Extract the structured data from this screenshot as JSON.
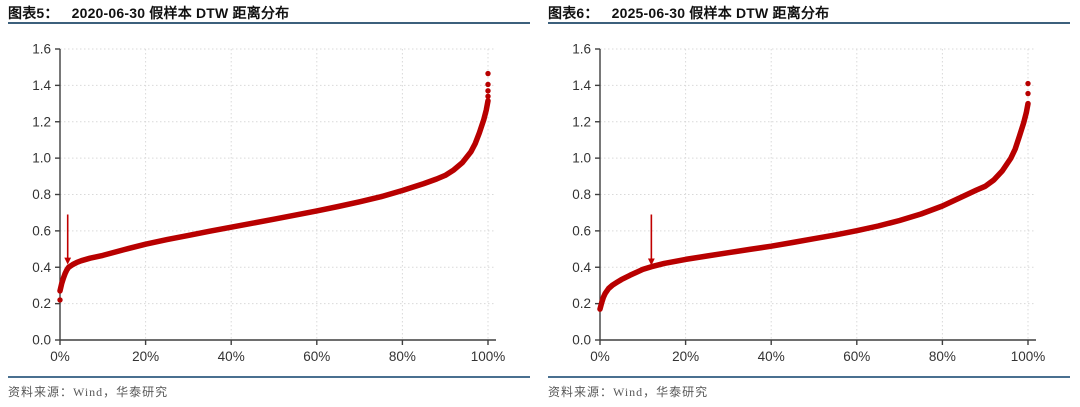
{
  "style": {
    "series_red": "#b80000",
    "arrow_red": "#c00000",
    "axis_color": "#3f3f3f",
    "tick_label_color": "#333333",
    "grid_color": "#d9d9d9",
    "title_color": "#111111",
    "rule_color": "#3c607c",
    "source_color": "#595959"
  },
  "chart_data": [
    {
      "type": "scatter",
      "figure_label": "图表5：",
      "title": "2020-06-30 假样本 DTW 距离分布",
      "source": "资料来源：Wind，华泰研究",
      "xlim": [
        0,
        100
      ],
      "ylim": [
        0,
        1.6
      ],
      "x_ticks": [
        0,
        20,
        40,
        60,
        80,
        100
      ],
      "x_tick_labels": [
        "0%",
        "20%",
        "40%",
        "60%",
        "80%",
        "100%"
      ],
      "y_ticks": [
        0.0,
        0.2,
        0.4,
        0.6,
        0.8,
        1.0,
        1.2,
        1.4,
        1.6
      ],
      "y_tick_labels": [
        "0.0",
        "0.2",
        "0.4",
        "0.6",
        "0.8",
        "1.0",
        "1.2",
        "1.4",
        "1.6"
      ],
      "grid": true,
      "points": [
        [
          0,
          0.27
        ],
        [
          0.4,
          0.31
        ],
        [
          0.8,
          0.34
        ],
        [
          1.2,
          0.365
        ],
        [
          1.6,
          0.385
        ],
        [
          2,
          0.4
        ],
        [
          3,
          0.415
        ],
        [
          4,
          0.427
        ],
        [
          5,
          0.436
        ],
        [
          7,
          0.45
        ],
        [
          10,
          0.465
        ],
        [
          15,
          0.497
        ],
        [
          20,
          0.527
        ],
        [
          25,
          0.552
        ],
        [
          30,
          0.575
        ],
        [
          35,
          0.598
        ],
        [
          40,
          0.62
        ],
        [
          45,
          0.642
        ],
        [
          50,
          0.664
        ],
        [
          55,
          0.687
        ],
        [
          60,
          0.71
        ],
        [
          65,
          0.734
        ],
        [
          70,
          0.76
        ],
        [
          75,
          0.788
        ],
        [
          80,
          0.822
        ],
        [
          85,
          0.86
        ],
        [
          88,
          0.885
        ],
        [
          90,
          0.905
        ],
        [
          92,
          0.935
        ],
        [
          94,
          0.975
        ],
        [
          96,
          1.035
        ],
        [
          97,
          1.08
        ],
        [
          98,
          1.14
        ],
        [
          99,
          1.21
        ],
        [
          99.6,
          1.265
        ],
        [
          100,
          1.315
        ]
      ],
      "isolated_points": [
        [
          0,
          0.22
        ],
        [
          100,
          1.34
        ],
        [
          100,
          1.37
        ],
        [
          100,
          1.405
        ],
        [
          100,
          1.465
        ]
      ],
      "arrow": {
        "x": 1.8,
        "y_from": 0.69,
        "y_to": 0.445
      }
    },
    {
      "type": "scatter",
      "figure_label": "图表6：",
      "title": "2025-06-30 假样本 DTW 距离分布",
      "source": "资料来源：Wind，华泰研究",
      "xlim": [
        0,
        100
      ],
      "ylim": [
        0,
        1.6
      ],
      "x_ticks": [
        0,
        20,
        40,
        60,
        80,
        100
      ],
      "x_tick_labels": [
        "0%",
        "20%",
        "40%",
        "60%",
        "80%",
        "100%"
      ],
      "y_ticks": [
        0.0,
        0.2,
        0.4,
        0.6,
        0.8,
        1.0,
        1.2,
        1.4,
        1.6
      ],
      "y_tick_labels": [
        "0.0",
        "0.2",
        "0.4",
        "0.6",
        "0.8",
        "1.0",
        "1.2",
        "1.4",
        "1.6"
      ],
      "grid": true,
      "points": [
        [
          0,
          0.17
        ],
        [
          0.4,
          0.205
        ],
        [
          0.8,
          0.235
        ],
        [
          1.2,
          0.255
        ],
        [
          2,
          0.283
        ],
        [
          3,
          0.303
        ],
        [
          4,
          0.318
        ],
        [
          5,
          0.332
        ],
        [
          7,
          0.356
        ],
        [
          10,
          0.388
        ],
        [
          12,
          0.403
        ],
        [
          15,
          0.421
        ],
        [
          20,
          0.443
        ],
        [
          25,
          0.462
        ],
        [
          30,
          0.48
        ],
        [
          35,
          0.498
        ],
        [
          40,
          0.516
        ],
        [
          45,
          0.536
        ],
        [
          50,
          0.557
        ],
        [
          55,
          0.578
        ],
        [
          60,
          0.601
        ],
        [
          65,
          0.627
        ],
        [
          70,
          0.657
        ],
        [
          75,
          0.693
        ],
        [
          80,
          0.737
        ],
        [
          85,
          0.792
        ],
        [
          88,
          0.825
        ],
        [
          90,
          0.845
        ],
        [
          92,
          0.88
        ],
        [
          94,
          0.93
        ],
        [
          96,
          1.0
        ],
        [
          97,
          1.05
        ],
        [
          98,
          1.12
        ],
        [
          99,
          1.195
        ],
        [
          99.6,
          1.25
        ],
        [
          100,
          1.3
        ]
      ],
      "isolated_points": [
        [
          100,
          1.355
        ],
        [
          100,
          1.41
        ]
      ],
      "arrow": {
        "x": 12,
        "y_from": 0.69,
        "y_to": 0.44
      }
    }
  ]
}
